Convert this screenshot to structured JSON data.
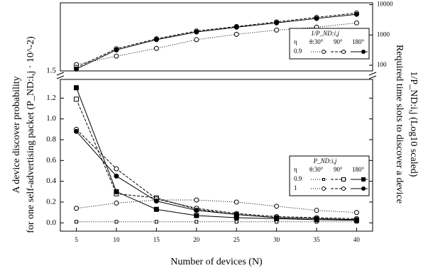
{
  "chart_data": [
    {
      "type": "line",
      "axis_label_y2": [
        "Required time slots to discover a device",
        "1/P_ND:i,j (Log10 scaled)"
      ],
      "x": [
        5,
        10,
        15,
        20,
        25,
        30,
        35,
        40
      ],
      "xlim": [
        3,
        42
      ],
      "ylim": [
        1.5,
        2.0
      ],
      "yticks": [
        1.5
      ],
      "y2lim": [
        65,
        11500
      ],
      "y2ticks": [
        100,
        1000,
        10000
      ],
      "y2log": true,
      "legend": {
        "title": "1/P_ND:i,j",
        "header": [
          "η",
          "θ:30°",
          "90°",
          "180°"
        ]
      },
      "series": [
        {
          "name": "0.9",
          "color": "#000",
          "style": "dotted",
          "marker": "circle-open",
          "axis": "y2",
          "values": [
            105,
            200,
            360,
            700,
            1050,
            1450,
            1800,
            2500
          ]
        },
        {
          "name": "0.9",
          "color": "#000",
          "style": "dashed",
          "marker": "circle-open",
          "axis": "y2",
          "values": [
            85,
            350,
            750,
            1350,
            1900,
            2700,
            3800,
            5300
          ]
        },
        {
          "name": "0.9",
          "color": "#000",
          "style": "solid",
          "marker": "circle-filled",
          "axis": "y2",
          "values": [
            75,
            320,
            700,
            1250,
            1800,
            2500,
            3500,
            4800
          ]
        }
      ]
    },
    {
      "type": "line",
      "xlabel": "Number of devices (N)",
      "ylabel": [
        "A device discover probability",
        "for one self-advertising packet (P_ND:i,j · 10^-2)"
      ],
      "x": [
        5,
        10,
        15,
        20,
        25,
        30,
        35,
        40
      ],
      "xlim": [
        3,
        42
      ],
      "xticks": [
        5,
        10,
        15,
        20,
        25,
        30,
        35,
        40
      ],
      "ylim": [
        -0.08,
        1.38
      ],
      "yticks": [
        {
          "value": 0,
          "label": "0.0"
        },
        0.2,
        0.4,
        0.6,
        0.8,
        {
          "value": 1,
          "label": "1.0"
        },
        1.2
      ],
      "legend": {
        "title": "P_ND:i,j",
        "header": [
          "η",
          "θ:30°",
          "90°",
          "180°"
        ]
      },
      "series": [
        {
          "name": "0.9",
          "color": "#000",
          "style": "dotted",
          "marker": "square-small",
          "values": [
            0.01,
            0.01,
            0.01,
            0.01,
            0.01,
            0.01,
            0.01,
            0.01
          ]
        },
        {
          "name": "0.9",
          "color": "#000",
          "style": "dashed",
          "marker": "square-open",
          "values": [
            1.19,
            0.28,
            0.24,
            0.13,
            0.08,
            0.05,
            0.04,
            0.03
          ]
        },
        {
          "name": "0.9",
          "color": "#000",
          "style": "solid",
          "marker": "square-filled",
          "values": [
            1.3,
            0.3,
            0.13,
            0.07,
            0.05,
            0.04,
            0.03,
            0.025
          ]
        },
        {
          "name": "1",
          "color": "#000",
          "style": "dotted",
          "marker": "circle-open",
          "values": [
            0.14,
            0.19,
            0.22,
            0.22,
            0.2,
            0.16,
            0.12,
            0.1
          ]
        },
        {
          "name": "1",
          "color": "#000",
          "style": "dashed",
          "marker": "circle-open",
          "values": [
            0.9,
            0.52,
            0.23,
            0.14,
            0.09,
            0.06,
            0.05,
            0.04
          ]
        },
        {
          "name": "1",
          "color": "#000",
          "style": "solid",
          "marker": "circle-filled",
          "values": [
            0.88,
            0.45,
            0.21,
            0.12,
            0.08,
            0.05,
            0.04,
            0.03
          ]
        }
      ]
    }
  ]
}
